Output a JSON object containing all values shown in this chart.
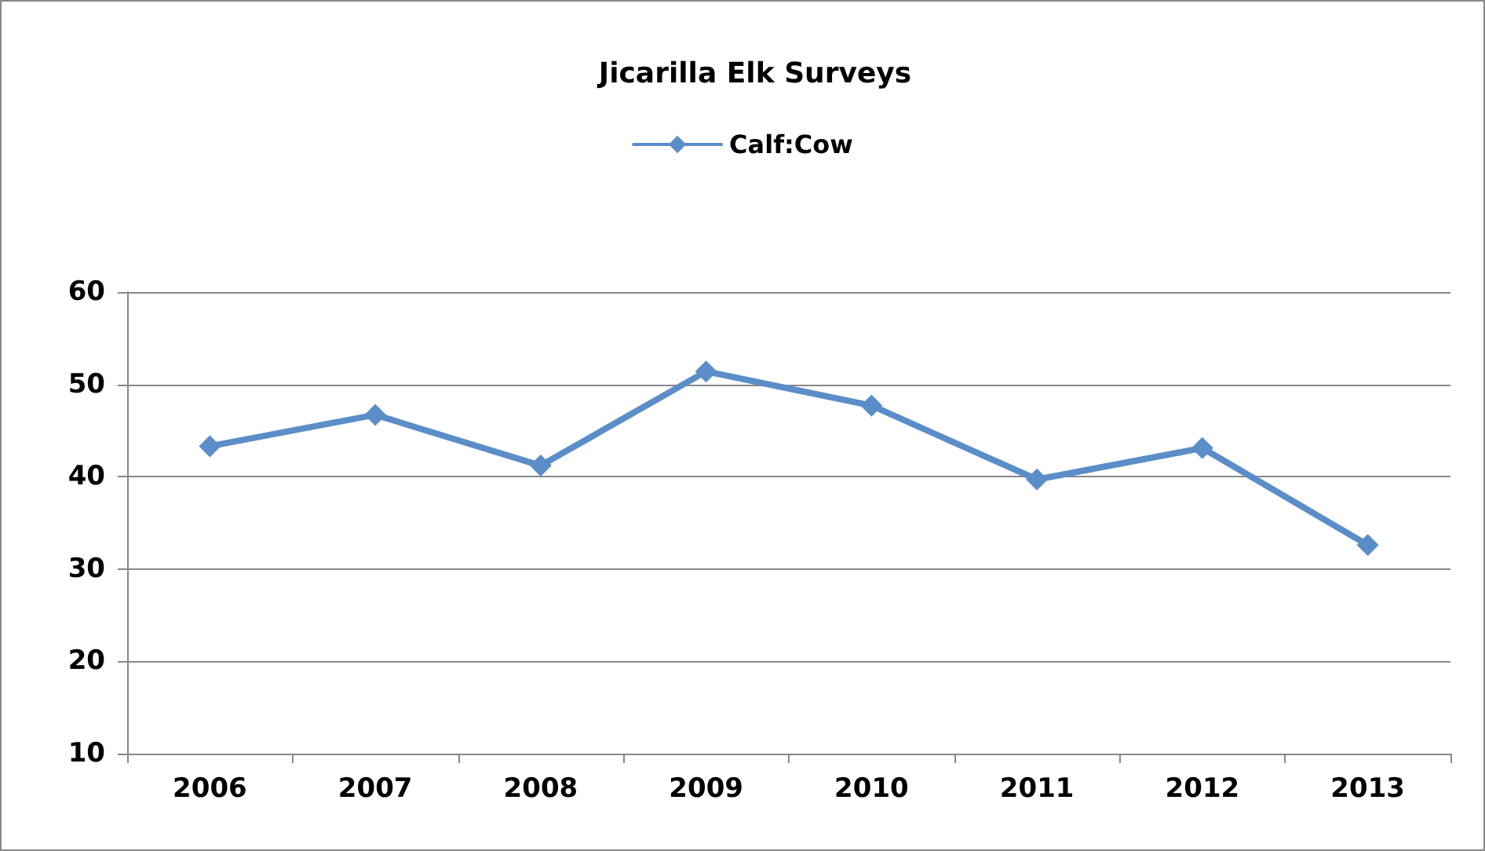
{
  "chart_data": {
    "type": "line",
    "title": "Jicarilla Elk Surveys",
    "categories": [
      "2006",
      "2007",
      "2008",
      "2009",
      "2010",
      "2011",
      "2012",
      "2013"
    ],
    "series": [
      {
        "name": "Calf:Cow",
        "color": "#5b8ec8",
        "values": [
          43.3,
          46.7,
          41.2,
          51.4,
          47.7,
          39.7,
          43.1,
          32.6
        ]
      }
    ],
    "ylim": [
      10,
      60
    ],
    "yticks": [
      10,
      20,
      30,
      40,
      50,
      60
    ],
    "grid": "y",
    "legend": "top",
    "marker": "diamond",
    "line_style": "solid"
  }
}
